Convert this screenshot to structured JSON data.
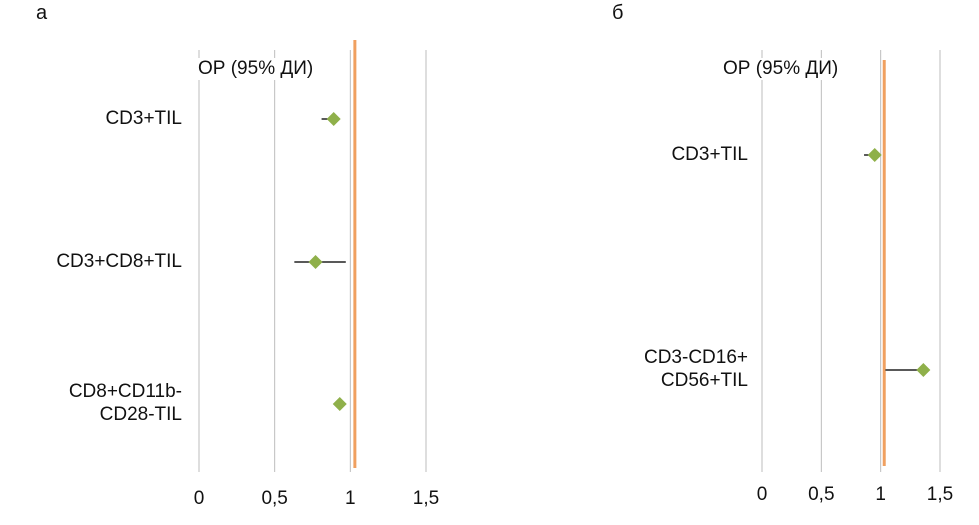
{
  "chart_data": [
    {
      "type": "forest",
      "panel_label": "а",
      "header": "ОР (95% ДИ)",
      "xlim": [
        0,
        1.5
      ],
      "x_ticks": [
        0,
        0.5,
        1,
        1.5
      ],
      "x_tick_labels": [
        "0",
        "0,5",
        "1",
        "1,5"
      ],
      "reference_line": 1.03,
      "grid": true,
      "rows": [
        {
          "label": [
            "CD3+TIL"
          ],
          "estimate": 0.89,
          "ci_low": 0.81,
          "ci_high": 0.89
        },
        {
          "label": [
            "CD3+CD8+TIL"
          ],
          "estimate": 0.77,
          "ci_low": 0.63,
          "ci_high": 0.97
        },
        {
          "label": [
            "CD8+CD11b-",
            "CD28-TIL"
          ],
          "estimate": 0.93,
          "ci_low": 0.93,
          "ci_high": 0.93
        }
      ]
    },
    {
      "type": "forest",
      "panel_label": "б",
      "header": "ОР (95% ДИ)",
      "xlim": [
        0,
        1.5
      ],
      "x_ticks": [
        0,
        0.5,
        1,
        1.5
      ],
      "x_tick_labels": [
        "0",
        "0,5",
        "1",
        "1,5"
      ],
      "reference_line": 1.03,
      "grid": true,
      "rows": [
        {
          "label": [
            "CD3+TIL"
          ],
          "estimate": 0.95,
          "ci_low": 0.86,
          "ci_high": 0.95
        },
        {
          "label": [
            "CD3-CD16+",
            "CD56+TIL"
          ],
          "estimate": 1.36,
          "ci_low": 1.04,
          "ci_high": 1.36
        }
      ]
    }
  ],
  "colors": {
    "marker": "#8fb04a",
    "reference": "#f0a060",
    "grid": "#bdbdbd",
    "ci": "#222222"
  }
}
